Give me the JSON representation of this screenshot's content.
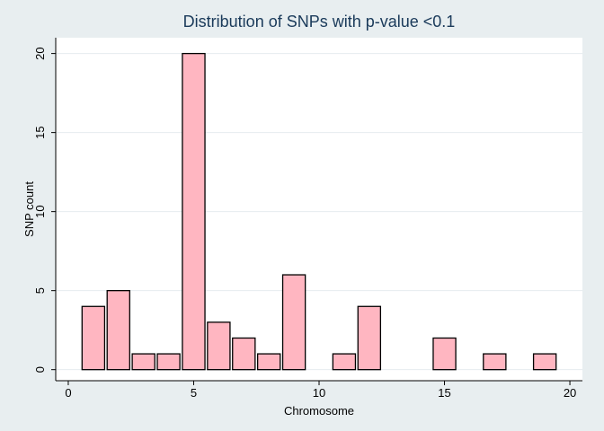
{
  "chart_data": {
    "type": "bar",
    "title": "Distribution of SNPs with p-value <0.1",
    "xlabel": "Chromosome",
    "ylabel": "SNP count",
    "xlim": [
      -0.5,
      20.5
    ],
    "ylim": [
      -0.7,
      21.0
    ],
    "xticks": [
      "0",
      "5",
      "10",
      "15",
      "20"
    ],
    "yticks": [
      "0",
      "5",
      "10",
      "15",
      "20"
    ],
    "grid": true,
    "legend": "none",
    "bar_width": 0.9,
    "colors": {
      "background": "#e8eef0",
      "plot_background": "#ffffff",
      "bar_fill": "#ffb6c1",
      "bar_stroke": "#000000",
      "grid": "#e6ecef",
      "title": "#1a3a5a"
    },
    "x": [
      1,
      2,
      3,
      4,
      5,
      6,
      7,
      8,
      9,
      11,
      12,
      15,
      17,
      19
    ],
    "values": [
      4,
      5,
      1,
      1,
      20,
      3,
      2,
      1,
      6,
      1,
      4,
      2,
      1,
      1
    ]
  }
}
